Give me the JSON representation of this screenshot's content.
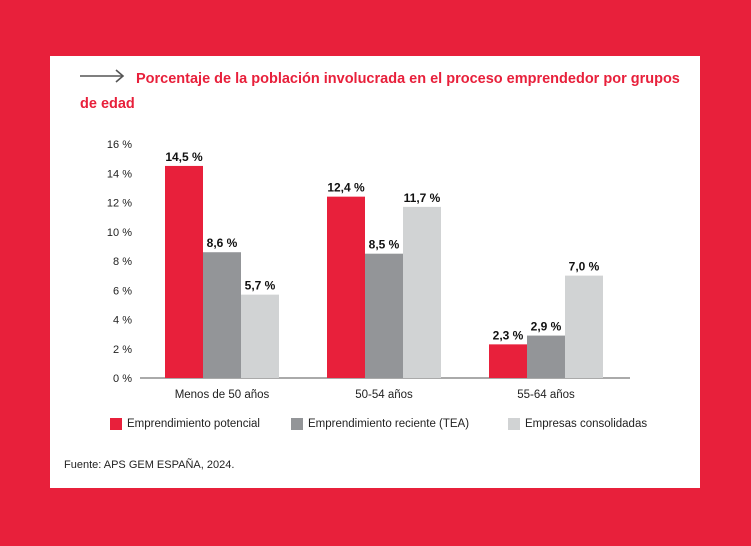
{
  "title": "Porcentaje de la población involucrada en el proceso emprendedor por grupos de edad",
  "title_line1": "Porcentaje de la población involucrada en el proceso emprendedor por grupos",
  "title_line2": "de edad",
  "source": "Fuente: APS GEM ESPAÑA, 2024.",
  "icons": {
    "title_arrow": "right-arrow-icon"
  },
  "colors": {
    "background": "#E8203B",
    "series": [
      "#E8203B",
      "#939598",
      "#D1D3D4"
    ]
  },
  "chart_data": {
    "type": "bar",
    "title": "Porcentaje de la población involucrada en el proceso emprendedor por grupos de edad",
    "xlabel": "",
    "ylabel": "",
    "categories": [
      "Menos de 50 años",
      "50-54 años",
      "55-64 años"
    ],
    "series": [
      {
        "name": "Emprendimiento potencial",
        "values": [
          14.5,
          12.4,
          2.3
        ],
        "labels": [
          "14,5 %",
          "12,4 %",
          "2,3 %"
        ]
      },
      {
        "name": "Emprendimiento reciente (TEA)",
        "values": [
          8.6,
          8.5,
          2.9
        ],
        "labels": [
          "8,6 %",
          "8,5 %",
          "2,9 %"
        ]
      },
      {
        "name": "Empresas consolidadas",
        "values": [
          5.7,
          11.7,
          7.0
        ],
        "labels": [
          "5,7 %",
          "11,7 %",
          "7,0 %"
        ]
      }
    ],
    "ylim": [
      0,
      16
    ],
    "yticks": [
      0,
      2,
      4,
      6,
      8,
      10,
      12,
      14,
      16
    ],
    "ytick_labels": [
      "0 %",
      "2 %",
      "4 %",
      "6 %",
      "8 %",
      "10 %",
      "12 %",
      "14 %",
      "16 %"
    ],
    "grid": false,
    "legend_position": "bottom"
  }
}
